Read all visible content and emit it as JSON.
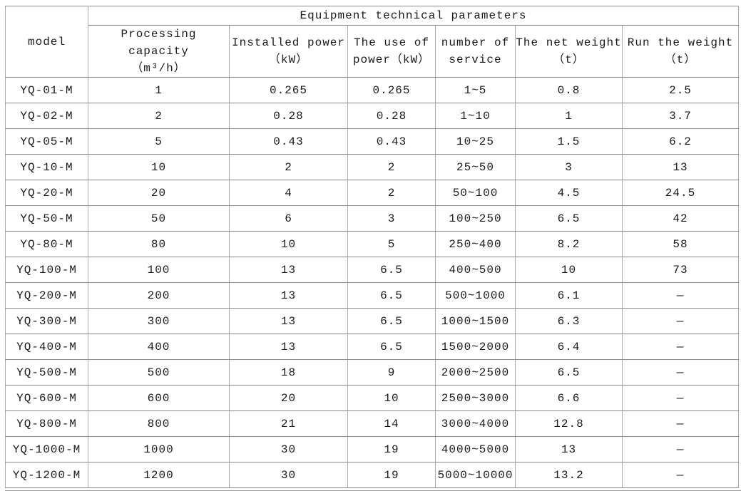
{
  "colors": {
    "text_color": "#1a1a1a",
    "border_h": "#8c8c8c",
    "border_v": "#adadad",
    "outer_border": "#9a9a9a",
    "bg": "#ffffff"
  },
  "table": {
    "title": "Equipment technical parameters",
    "model_header": "model",
    "columns": [
      "Processing capacity\n（m³/h）",
      "Installed power\n（kW）",
      "The use of\npower（kW）",
      "number of\nservice",
      "The net weight\n（t）",
      "Run the weight\n（t）"
    ],
    "rows": [
      {
        "model": "YQ-01-M",
        "values": [
          "1",
          "0.265",
          "0.265",
          "1~5",
          "0.8",
          "2.5"
        ]
      },
      {
        "model": "YQ-02-M",
        "values": [
          "2",
          "0.28",
          "0.28",
          "1~10",
          "1",
          "3.7"
        ]
      },
      {
        "model": "YQ-05-M",
        "values": [
          "5",
          "0.43",
          "0.43",
          "10~25",
          "1.5",
          "6.2"
        ]
      },
      {
        "model": "YQ-10-M",
        "values": [
          "10",
          "2",
          "2",
          "25~50",
          "3",
          "13"
        ]
      },
      {
        "model": "YQ-20-M",
        "values": [
          "20",
          "4",
          "2",
          "50~100",
          "4.5",
          "24.5"
        ]
      },
      {
        "model": "YQ-50-M",
        "values": [
          "50",
          "6",
          "3",
          "100~250",
          "6.5",
          "42"
        ]
      },
      {
        "model": "YQ-80-M",
        "values": [
          "80",
          "10",
          "5",
          "250~400",
          "8.2",
          "58"
        ]
      },
      {
        "model": "YQ-100-M",
        "values": [
          "100",
          "13",
          "6.5",
          "400~500",
          "10",
          "73"
        ]
      },
      {
        "model": "YQ-200-M",
        "values": [
          "200",
          "13",
          "6.5",
          "500~1000",
          "6.1",
          "—"
        ]
      },
      {
        "model": "YQ-300-M",
        "values": [
          "300",
          "13",
          "6.5",
          "1000~1500",
          "6.3",
          "—"
        ]
      },
      {
        "model": "YQ-400-M",
        "values": [
          "400",
          "13",
          "6.5",
          "1500~2000",
          "6.4",
          "—"
        ]
      },
      {
        "model": "YQ-500-M",
        "values": [
          "500",
          "18",
          "9",
          "2000~2500",
          "6.5",
          "—"
        ]
      },
      {
        "model": "YQ-600-M",
        "values": [
          "600",
          "20",
          "10",
          "2500~3000",
          "6.6",
          "—"
        ]
      },
      {
        "model": "YQ-800-M",
        "values": [
          "800",
          "21",
          "14",
          "3000~4000",
          "12.8",
          "—"
        ]
      },
      {
        "model": "YQ-1000-M",
        "values": [
          "1000",
          "30",
          "19",
          "4000~5000",
          "13",
          "—"
        ]
      },
      {
        "model": "YQ-1200-M",
        "values": [
          "1200",
          "30",
          "19",
          "5000~10000",
          "13.2",
          "—"
        ]
      }
    ]
  }
}
